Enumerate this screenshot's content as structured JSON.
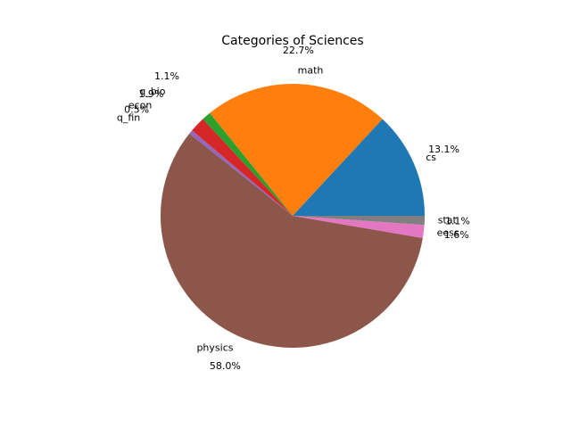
{
  "chart_data": {
    "type": "pie",
    "title": "Categories of Sciences",
    "start_angle_deg": 0,
    "direction": "counterclockwise",
    "slices": [
      {
        "label": "cs",
        "value": 13.1,
        "pct_text": "13.1%",
        "color": "#1f77b4"
      },
      {
        "label": "math",
        "value": 22.7,
        "pct_text": "22.7%",
        "color": "#ff7f0e"
      },
      {
        "label": "q_bio",
        "value": 1.1,
        "pct_text": "1.1%",
        "color": "#2ca02c"
      },
      {
        "label": "econ",
        "value": 1.9,
        "pct_text": "1.9%",
        "color": "#d62728"
      },
      {
        "label": "q_fin",
        "value": 0.5,
        "pct_text": "0.5%",
        "color": "#9467bd"
      },
      {
        "label": "physics",
        "value": 58.0,
        "pct_text": "58.0%",
        "color": "#8c564b"
      },
      {
        "label": "eess",
        "value": 1.6,
        "pct_text": "1.6%",
        "color": "#e377c2"
      },
      {
        "label": "stat",
        "value": 1.1,
        "pct_text": "1.1%",
        "color": "#7f7f7f"
      }
    ]
  }
}
